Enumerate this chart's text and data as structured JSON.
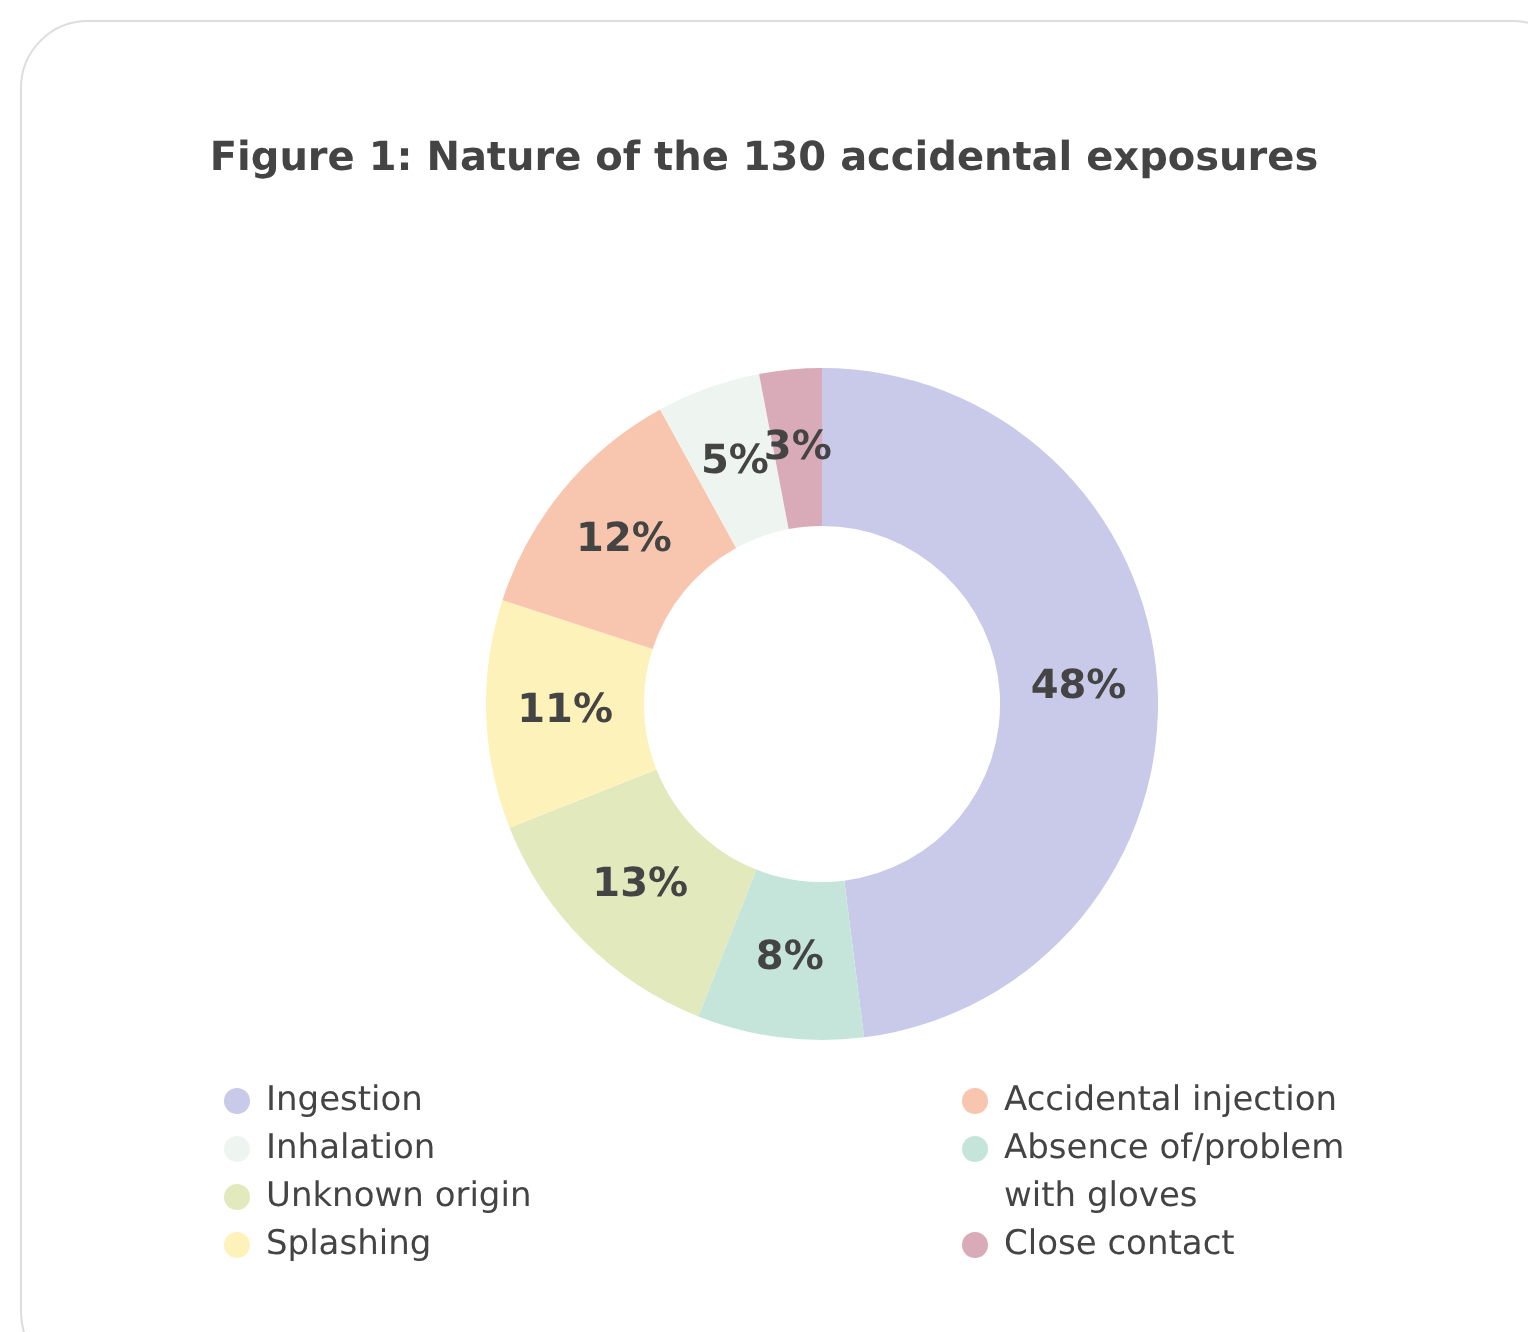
{
  "chart_data": {
    "type": "donut",
    "title": "Figure 1: Nature of the 130 accidental exposures",
    "categories": [
      "Ingestion",
      "Absence of/problem with gloves",
      "Unknown origin",
      "Splashing",
      "Accidental injection",
      "Inhalation",
      "Close contact"
    ],
    "values": [
      48,
      8,
      13,
      11,
      12,
      5,
      3
    ],
    "value_labels": [
      "48%",
      "8%",
      "13%",
      "11%",
      "12%",
      "5%",
      "3%"
    ],
    "colors": [
      "#c9c9e9",
      "#c5e5db",
      "#e1e9bd",
      "#fef2bb",
      "#f8c6ae",
      "#eef5f1",
      "#d9abb9"
    ],
    "legend": "bottom"
  }
}
